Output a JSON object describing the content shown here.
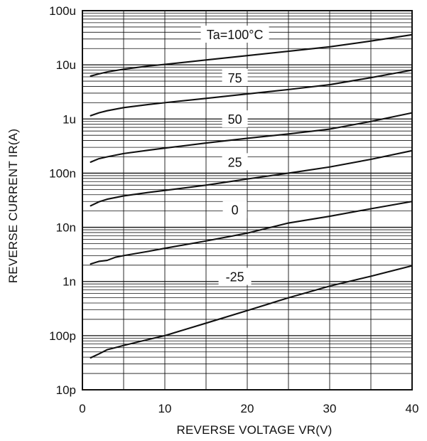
{
  "chart_data": {
    "type": "line",
    "title": "",
    "xlabel": "REVERSE VOLTAGE VR(V)",
    "ylabel": "REVERSE  CURRENT  IR(A)",
    "x_scale": "linear",
    "y_scale": "log",
    "xlim": [
      0,
      40
    ],
    "ylim": [
      1e-11,
      0.0001
    ],
    "grid": true,
    "legend": "none",
    "x_ticks": [
      {
        "value": 0,
        "label": "0"
      },
      {
        "value": 10,
        "label": "10"
      },
      {
        "value": 20,
        "label": "20"
      },
      {
        "value": 30,
        "label": "30"
      },
      {
        "value": 40,
        "label": "40"
      }
    ],
    "y_ticks": [
      {
        "value": 0.0001,
        "label": "100u"
      },
      {
        "value": 1e-05,
        "label": "10u"
      },
      {
        "value": 1e-06,
        "label": "1u"
      },
      {
        "value": 1e-07,
        "label": "100n"
      },
      {
        "value": 1e-08,
        "label": "10n"
      },
      {
        "value": 1e-09,
        "label": "1n"
      },
      {
        "value": 1e-10,
        "label": "100p"
      },
      {
        "value": 1e-11,
        "label": "10p"
      }
    ],
    "colors": {
      "line": "#111111",
      "grid": "#111111",
      "background": "#ffffff"
    },
    "series": [
      {
        "name": "Ta=100°C",
        "x": [
          1,
          2,
          3,
          5,
          8,
          10,
          15,
          20,
          25,
          30,
          35,
          40
        ],
        "y": [
          6.2e-06,
          6.8e-06,
          7.4e-06,
          8.3e-06,
          9.5e-06,
          1.02e-05,
          1.23e-05,
          1.48e-05,
          1.78e-05,
          2.15e-05,
          2.75e-05,
          3.6e-05
        ]
      },
      {
        "name": "75",
        "x": [
          1,
          2,
          3,
          5,
          8,
          10,
          15,
          20,
          25,
          30,
          35,
          40
        ],
        "y": [
          1.15e-06,
          1.3e-06,
          1.42e-06,
          1.62e-06,
          1.85e-06,
          2e-06,
          2.4e-06,
          2.9e-06,
          3.5e-06,
          4.3e-06,
          5.8e-06,
          8e-06
        ]
      },
      {
        "name": "50",
        "x": [
          1,
          2,
          3,
          5,
          8,
          10,
          15,
          20,
          25,
          30,
          35,
          40
        ],
        "y": [
          1.6e-07,
          1.85e-07,
          2e-07,
          2.3e-07,
          2.65e-07,
          2.9e-07,
          3.6e-07,
          4.4e-07,
          5.3e-07,
          6.5e-07,
          9e-07,
          1.3e-06
        ]
      },
      {
        "name": "25",
        "x": [
          1,
          2,
          3,
          5,
          8,
          10,
          15,
          20,
          25,
          30,
          35,
          40
        ],
        "y": [
          2.5e-08,
          2.95e-08,
          3.3e-08,
          3.8e-08,
          4.4e-08,
          4.8e-08,
          6e-08,
          7.8e-08,
          1e-07,
          1.3e-07,
          1.8e-07,
          2.6e-07
        ]
      },
      {
        "name": "0",
        "x": [
          1,
          2,
          3,
          4,
          5,
          8,
          10,
          15,
          20,
          25,
          30,
          35,
          40
        ],
        "y": [
          2.1e-09,
          2.35e-09,
          2.45e-09,
          2.8e-09,
          3e-09,
          3.6e-09,
          4.1e-09,
          5.6e-09,
          7.8e-09,
          1.2e-08,
          1.6e-08,
          2.2e-08,
          3e-08
        ]
      },
      {
        "name": "-25",
        "x": [
          1,
          2,
          3,
          4,
          5,
          8,
          10,
          15,
          20,
          25,
          30,
          35,
          40
        ],
        "y": [
          3.9e-11,
          4.6e-11,
          5.5e-11,
          6e-11,
          6.6e-11,
          8.5e-11,
          1e-10,
          1.7e-10,
          2.9e-10,
          5e-10,
          8.2e-10,
          1.25e-09,
          1.95e-09
        ]
      }
    ]
  }
}
